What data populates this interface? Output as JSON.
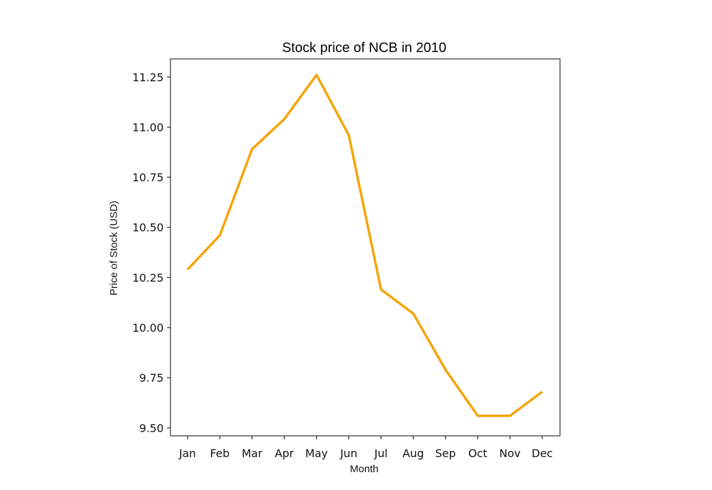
{
  "chart_data": {
    "type": "line",
    "title": "Stock price of NCB in 2010",
    "xlabel": "Month",
    "ylabel": "Price of Stock (USD)",
    "categories": [
      "Jan",
      "Feb",
      "Mar",
      "Apr",
      "May",
      "Jun",
      "Jul",
      "Aug",
      "Sep",
      "Oct",
      "Nov",
      "Dec"
    ],
    "series": [
      {
        "values": [
          10.29,
          10.46,
          10.89,
          11.04,
          11.26,
          10.96,
          10.19,
          10.07,
          9.79,
          9.56,
          9.56,
          9.68
        ],
        "color": "#f5a300"
      }
    ],
    "ylim": [
      9.46,
      11.34
    ],
    "yticks": [
      9.5,
      9.75,
      10.0,
      10.25,
      10.5,
      10.75,
      11.0,
      11.25
    ],
    "ytick_labels": [
      "9.50",
      "9.75",
      "10.00",
      "10.25",
      "10.50",
      "10.75",
      "11.00",
      "11.25"
    ],
    "grid": false,
    "legend": "none"
  }
}
